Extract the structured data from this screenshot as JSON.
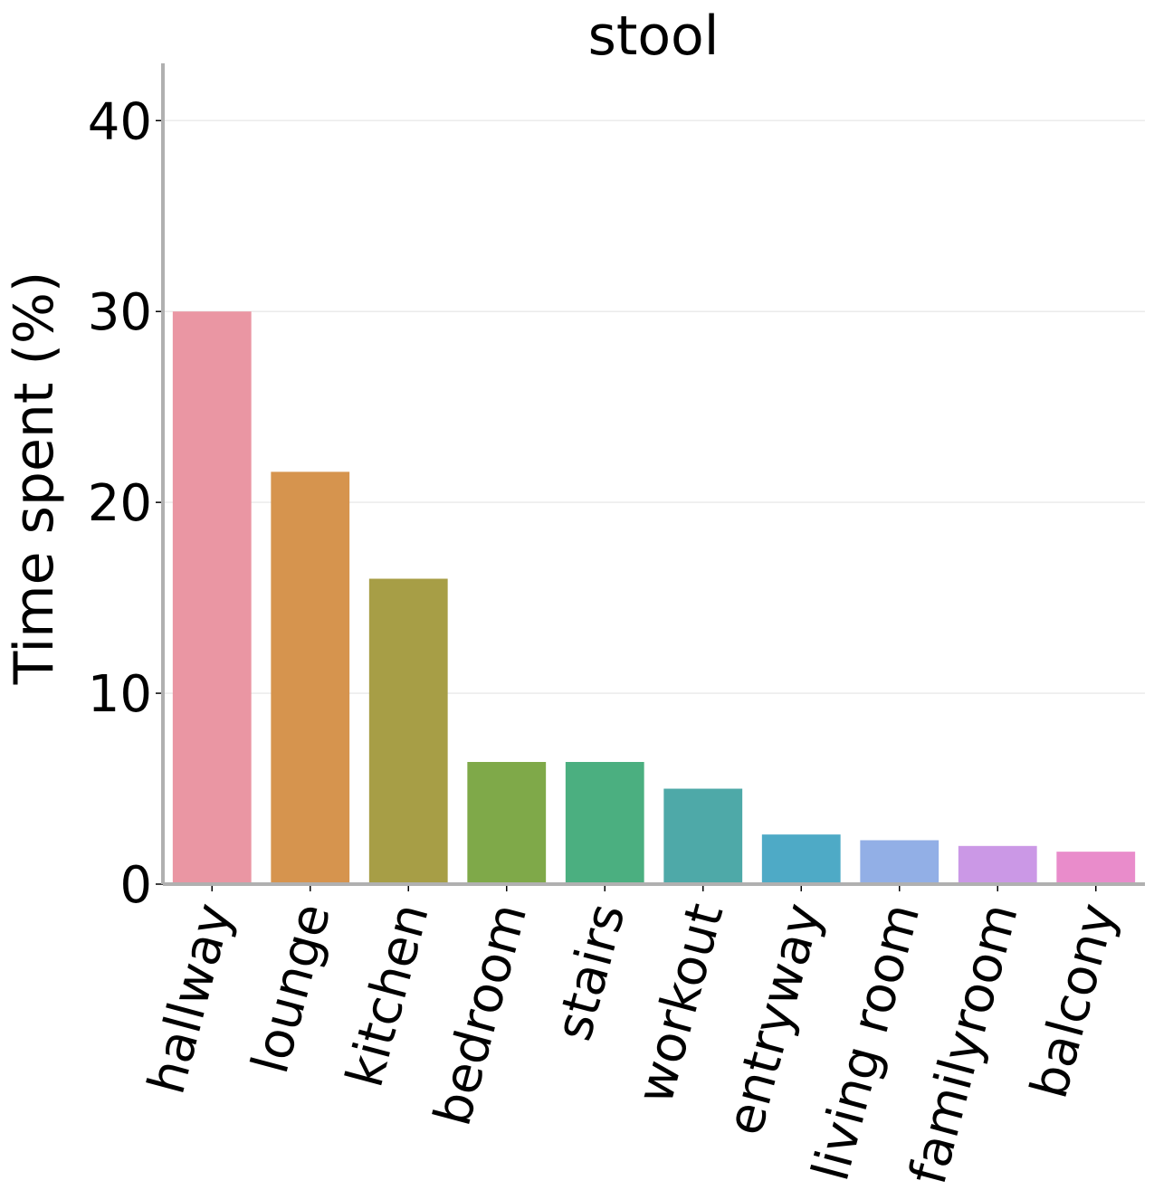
{
  "chart_data": {
    "type": "bar",
    "title": "stool",
    "xlabel": "",
    "ylabel": "Time spent (%)",
    "ylim": [
      0,
      43
    ],
    "yticks": [
      0,
      10,
      20,
      30,
      40
    ],
    "grid": "horizontal",
    "legend": "none",
    "categories": [
      "hallway",
      "lounge",
      "kitchen",
      "bedroom",
      "stairs",
      "workout",
      "entryway",
      "living room",
      "familyroom",
      "balcony"
    ],
    "values": [
      30.0,
      21.6,
      16.0,
      6.4,
      6.4,
      5.0,
      2.6,
      2.3,
      2.0,
      1.7
    ],
    "colors": [
      "#ea96a3",
      "#d6944e",
      "#a79e46",
      "#7fa949",
      "#4baf80",
      "#4ea9a8",
      "#4eaac6",
      "#92afe6",
      "#cb98e6",
      "#e98ccb"
    ],
    "axis_color": "#b0b0b0",
    "grid_color": "#ebebeb"
  }
}
